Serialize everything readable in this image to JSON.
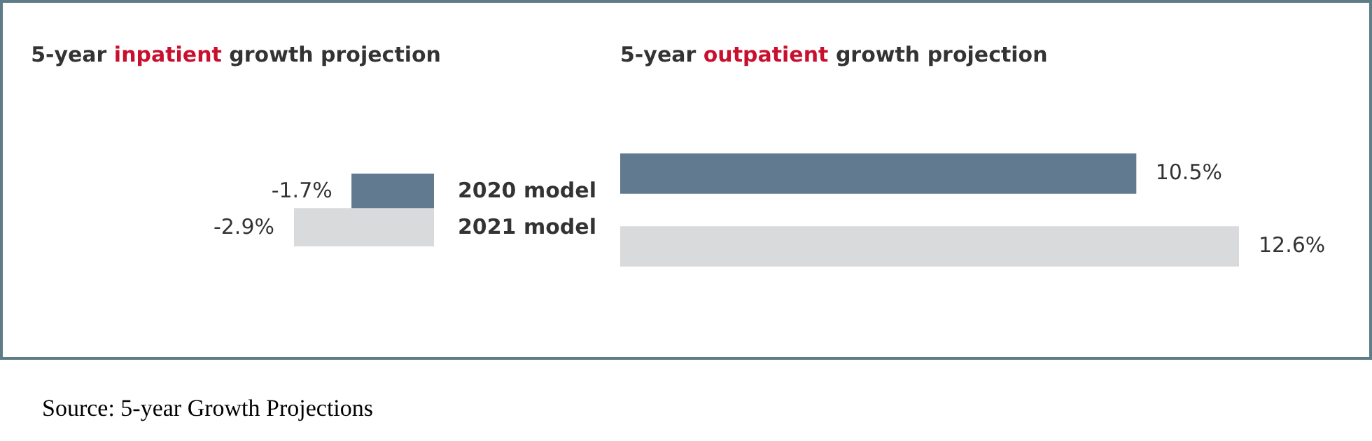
{
  "chart_data": [
    {
      "type": "bar",
      "orientation": "horizontal",
      "title": "5-year inpatient growth projection",
      "categories": [
        "2020 model",
        "2021 model"
      ],
      "values": [
        -1.7,
        -2.9
      ],
      "value_labels": [
        "-1.7%",
        "-2.9%"
      ],
      "colors": [
        "#627a90",
        "#d8dadc"
      ],
      "tick_labels": "y",
      "grid": false,
      "legend": false
    },
    {
      "type": "bar",
      "orientation": "horizontal",
      "title": "5-year outpatient growth projection",
      "categories": [
        null,
        null
      ],
      "values": [
        10.5,
        12.6
      ],
      "value_labels": [
        "10.5%",
        "12.6%"
      ],
      "colors": [
        "#627a90",
        "#d8dadc"
      ],
      "tick_labels": false,
      "grid": false,
      "legend": false,
      "annotations": [
        "Source: 5-year Growth Projections"
      ]
    }
  ]
}
